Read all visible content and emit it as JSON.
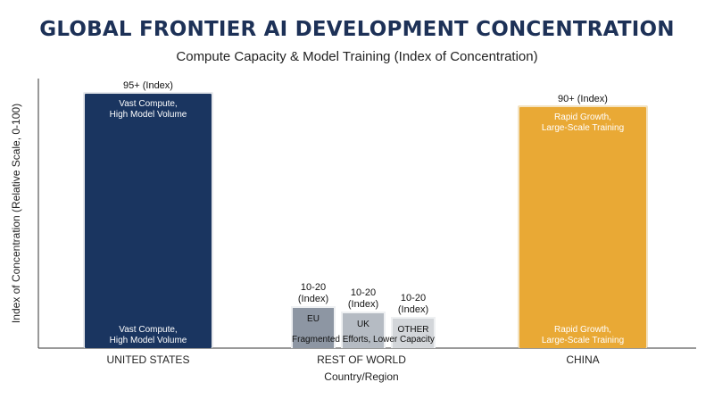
{
  "chart_data": {
    "type": "bar",
    "title": "GLOBAL FRONTIER AI DEVELOPMENT CONCENTRATION",
    "subtitle": "Compute Capacity & Model Training (Index of Concentration)",
    "xlabel": "Country/Region",
    "ylabel": "Index of Concentration (Relative Scale, 0-100)",
    "ylim": [
      0,
      100
    ],
    "grid": false,
    "categories": [
      "UNITED STATES",
      "REST OF WORLD",
      "CHINA"
    ],
    "bars": [
      {
        "category": "UNITED STATES",
        "value": 95,
        "value_label": "95+ (Index)",
        "inner_label_top": "Vast Compute,\nHigh Model Volume",
        "inner_label_bottom": "Vast Compute,\nHigh Model Volume",
        "color": "#1a3560"
      },
      {
        "category": "CHINA",
        "value": 90,
        "value_label": "90+ (Index)",
        "inner_label_top": "Rapid Growth,\nLarge-Scale Training",
        "inner_label_bottom": "Rapid Growth,\nLarge-Scale Training",
        "color": "#e9a935"
      }
    ],
    "rest_of_world": {
      "category": "REST OF WORLD",
      "caption": "Fragmented Efforts, Lower Capacity",
      "sub_bars": [
        {
          "name": "EU",
          "value": 15,
          "value_label": "10-20\n(Index)",
          "color": "#8d96a3"
        },
        {
          "name": "UK",
          "value": 13,
          "value_label": "10-20\n(Index)",
          "color": "#b5bbc3"
        },
        {
          "name": "OTHER",
          "value": 11,
          "value_label": "10-20\n(Index)",
          "color": "#d3d6da"
        }
      ]
    }
  }
}
